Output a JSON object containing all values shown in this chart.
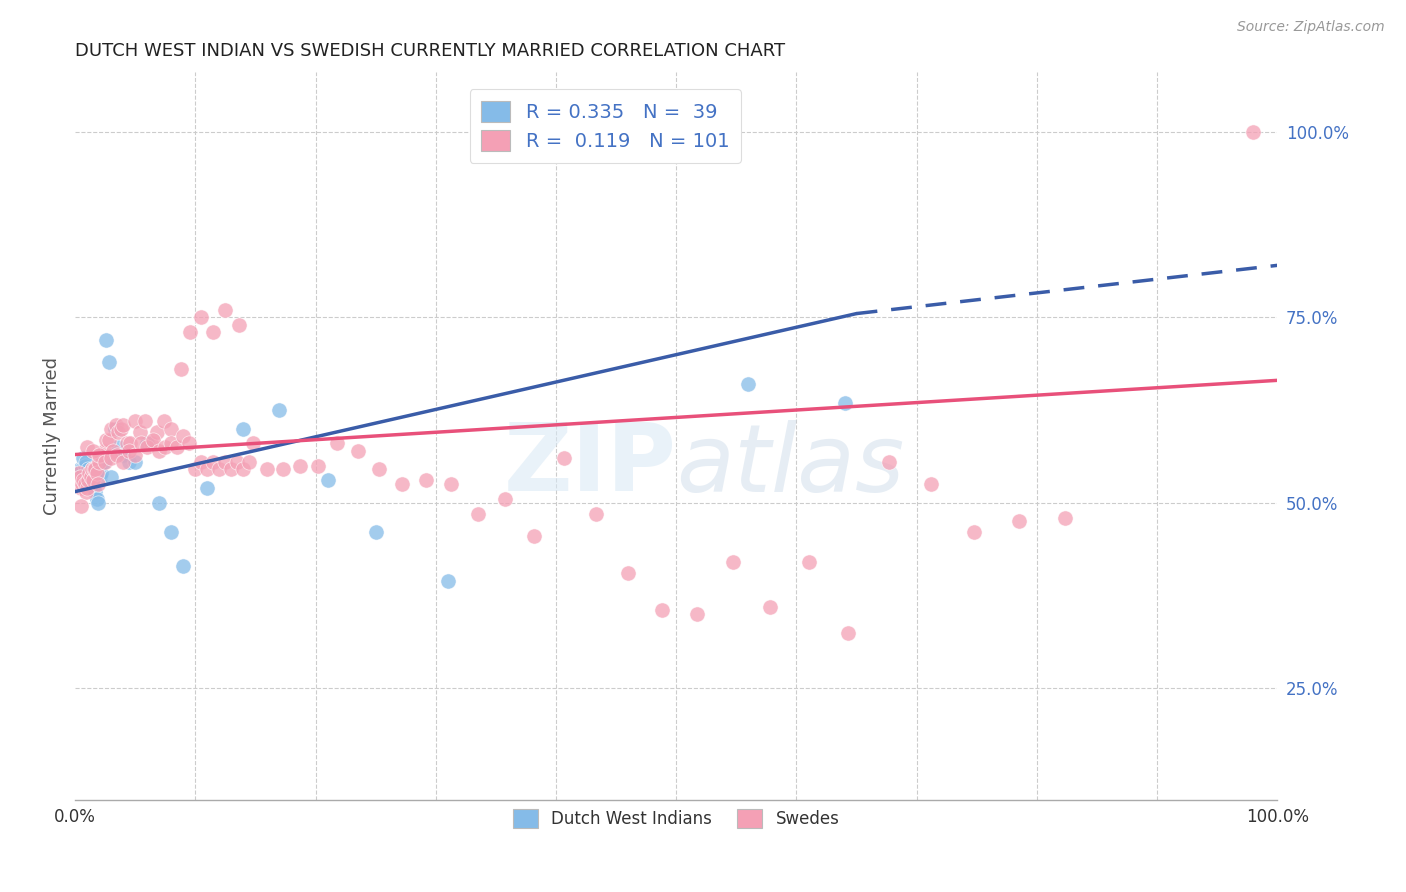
{
  "title": "DUTCH WEST INDIAN VS SWEDISH CURRENTLY MARRIED CORRELATION CHART",
  "source": "Source: ZipAtlas.com",
  "ylabel": "Currently Married",
  "legend_labels": [
    "Dutch West Indians",
    "Swedes"
  ],
  "legend_r": [
    0.335,
    0.119
  ],
  "legend_n": [
    39,
    101
  ],
  "blue_color": "#85BBE8",
  "pink_color": "#F4A0B5",
  "blue_line_color": "#3A5CA8",
  "pink_line_color": "#E8507A",
  "right_ytick_labels": [
    "25.0%",
    "50.0%",
    "75.0%",
    "100.0%"
  ],
  "right_ytick_positions": [
    0.25,
    0.5,
    0.75,
    1.0
  ],
  "xlim": [
    0.0,
    1.0
  ],
  "ylim": [
    0.1,
    1.08
  ],
  "blue_line_start_x": 0.0,
  "blue_line_start_y": 0.515,
  "blue_line_solid_end_x": 0.65,
  "blue_line_solid_end_y": 0.755,
  "blue_line_dash_end_x": 1.0,
  "blue_line_dash_end_y": 0.82,
  "pink_line_start_x": 0.0,
  "pink_line_start_y": 0.565,
  "pink_line_end_x": 1.0,
  "pink_line_end_y": 0.665,
  "blue_scatter_x": [
    0.004,
    0.006,
    0.007,
    0.008,
    0.009,
    0.01,
    0.011,
    0.012,
    0.013,
    0.014,
    0.015,
    0.016,
    0.017,
    0.018,
    0.019,
    0.02,
    0.021,
    0.022,
    0.024,
    0.026,
    0.028,
    0.03,
    0.033,
    0.036,
    0.04,
    0.045,
    0.05,
    0.06,
    0.07,
    0.08,
    0.09,
    0.11,
    0.14,
    0.17,
    0.21,
    0.25,
    0.31,
    0.56,
    0.64
  ],
  "blue_scatter_y": [
    0.545,
    0.545,
    0.56,
    0.55,
    0.555,
    0.53,
    0.545,
    0.535,
    0.53,
    0.545,
    0.52,
    0.535,
    0.515,
    0.505,
    0.5,
    0.55,
    0.535,
    0.54,
    0.555,
    0.72,
    0.69,
    0.535,
    0.6,
    0.575,
    0.565,
    0.555,
    0.555,
    0.58,
    0.5,
    0.46,
    0.415,
    0.52,
    0.6,
    0.625,
    0.53,
    0.46,
    0.395,
    0.66,
    0.635
  ],
  "pink_scatter_x": [
    0.003,
    0.004,
    0.005,
    0.006,
    0.007,
    0.008,
    0.009,
    0.01,
    0.011,
    0.012,
    0.013,
    0.014,
    0.015,
    0.016,
    0.017,
    0.018,
    0.019,
    0.02,
    0.022,
    0.024,
    0.026,
    0.028,
    0.03,
    0.032,
    0.034,
    0.036,
    0.038,
    0.04,
    0.043,
    0.046,
    0.05,
    0.054,
    0.058,
    0.063,
    0.068,
    0.074,
    0.08,
    0.088,
    0.096,
    0.105,
    0.115,
    0.125,
    0.136,
    0.148,
    0.16,
    0.173,
    0.187,
    0.202,
    0.218,
    0.235,
    0.253,
    0.272,
    0.292,
    0.313,
    0.335,
    0.358,
    0.382,
    0.407,
    0.433,
    0.46,
    0.488,
    0.517,
    0.547,
    0.578,
    0.61,
    0.643,
    0.677,
    0.712,
    0.748,
    0.785,
    0.823,
    0.005,
    0.01,
    0.015,
    0.02,
    0.025,
    0.03,
    0.035,
    0.04,
    0.045,
    0.05,
    0.055,
    0.06,
    0.065,
    0.07,
    0.075,
    0.08,
    0.085,
    0.09,
    0.095,
    0.1,
    0.105,
    0.11,
    0.115,
    0.12,
    0.125,
    0.13,
    0.135,
    0.14,
    0.145,
    0.98
  ],
  "pink_scatter_y": [
    0.54,
    0.535,
    0.52,
    0.525,
    0.53,
    0.525,
    0.515,
    0.52,
    0.53,
    0.54,
    0.535,
    0.545,
    0.53,
    0.545,
    0.545,
    0.54,
    0.525,
    0.555,
    0.565,
    0.57,
    0.585,
    0.585,
    0.6,
    0.57,
    0.605,
    0.595,
    0.6,
    0.605,
    0.58,
    0.58,
    0.61,
    0.595,
    0.61,
    0.58,
    0.595,
    0.61,
    0.6,
    0.68,
    0.73,
    0.75,
    0.73,
    0.76,
    0.74,
    0.58,
    0.545,
    0.545,
    0.55,
    0.55,
    0.58,
    0.57,
    0.545,
    0.525,
    0.53,
    0.525,
    0.485,
    0.505,
    0.455,
    0.56,
    0.485,
    0.405,
    0.355,
    0.35,
    0.42,
    0.36,
    0.42,
    0.325,
    0.555,
    0.525,
    0.46,
    0.475,
    0.48,
    0.495,
    0.575,
    0.57,
    0.565,
    0.555,
    0.56,
    0.565,
    0.555,
    0.57,
    0.565,
    0.58,
    0.575,
    0.585,
    0.57,
    0.575,
    0.58,
    0.575,
    0.59,
    0.58,
    0.545,
    0.555,
    0.545,
    0.555,
    0.545,
    0.555,
    0.545,
    0.555,
    0.545,
    0.555,
    1.0
  ]
}
